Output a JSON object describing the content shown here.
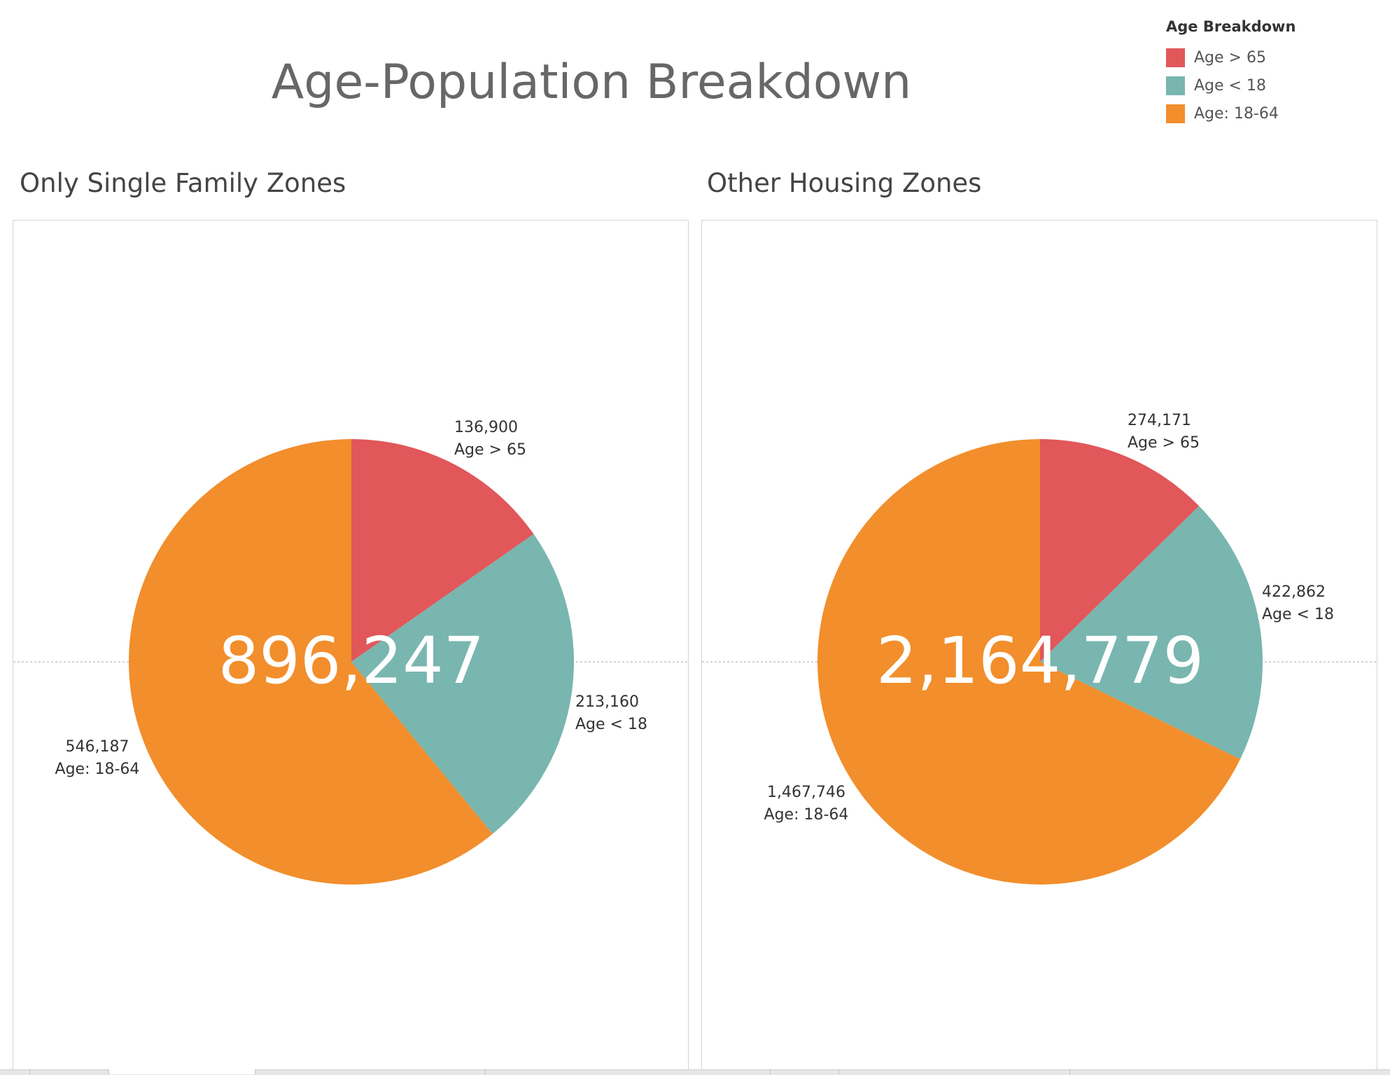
{
  "title": "Age-Population Breakdown",
  "legend": {
    "title": "Age Breakdown",
    "items": [
      {
        "label": "Age > 65",
        "color": "#e1575a"
      },
      {
        "label": "Age < 18",
        "color": "#78b6af"
      },
      {
        "label": "Age: 18-64",
        "color": "#f28e2c"
      }
    ]
  },
  "chart_data": [
    {
      "type": "pie",
      "title": "Only Single Family Zones",
      "total_label": "896,247",
      "slices": [
        {
          "name": "Age > 65",
          "value": 136900,
          "value_label": "136,900",
          "color": "#e1575a"
        },
        {
          "name": "Age < 18",
          "value": 213160,
          "value_label": "213,160",
          "color": "#78b6af"
        },
        {
          "name": "Age: 18-64",
          "value": 546187,
          "value_label": "546,187",
          "color": "#f28e2c"
        }
      ]
    },
    {
      "type": "pie",
      "title": "Other Housing Zones",
      "total_label": "2,164,779",
      "slices": [
        {
          "name": "Age > 65",
          "value": 274171,
          "value_label": "274,171",
          "color": "#e1575a"
        },
        {
          "name": "Age < 18",
          "value": 422862,
          "value_label": "422,862",
          "color": "#78b6af"
        },
        {
          "name": "Age: 18-64",
          "value": 1467746,
          "value_label": "1,467,746",
          "color": "#f28e2c"
        }
      ]
    }
  ]
}
